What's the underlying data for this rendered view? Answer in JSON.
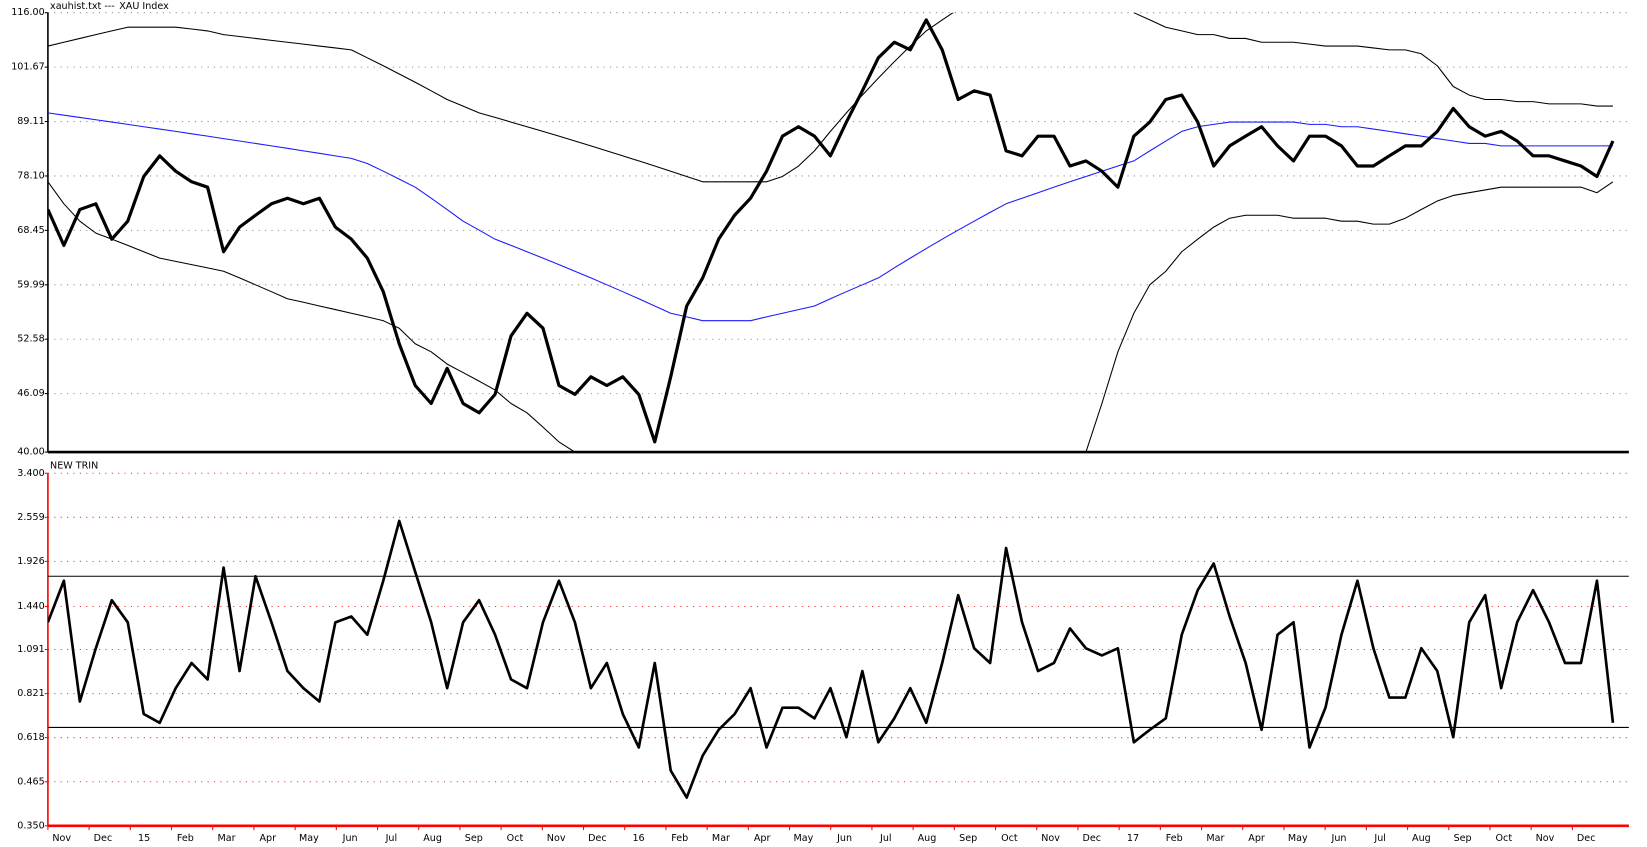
{
  "chart_data": [
    {
      "type": "line",
      "title": "xauhist.txt ---",
      "subtitle": "XAU Index",
      "log": true,
      "grid": true,
      "grid_color": "#888",
      "axis_color": "#000",
      "ylim": [
        40,
        116
      ],
      "yticks": [
        {
          "value": 40,
          "label": "40.00"
        },
        46.09,
        52.58,
        59.99,
        68.45,
        {
          "value": 78.1,
          "label": "78.10"
        },
        89.11,
        101.67,
        {
          "value": 116,
          "label": "116.00"
        }
      ],
      "series": [
        {
          "color": "#000000",
          "width": 1,
          "values": [
            107,
            108,
            109,
            110,
            111,
            112,
            112,
            112,
            112,
            111.5,
            111,
            110,
            109.5,
            109,
            108.5,
            108,
            107.5,
            107,
            106.5,
            106,
            104,
            102,
            100,
            98,
            96,
            94,
            92.5,
            91,
            90,
            89,
            88,
            87,
            86,
            85,
            84,
            83,
            82,
            81,
            80,
            79,
            78,
            77,
            77,
            77,
            77,
            77,
            78,
            80,
            83,
            87,
            91,
            95,
            99,
            103,
            107,
            111,
            114,
            117,
            null,
            null,
            null,
            null,
            null,
            null,
            null,
            null,
            null,
            null,
            116,
            114,
            112,
            111,
            110,
            110,
            109,
            109,
            108,
            108,
            108,
            107.5,
            107,
            107,
            107,
            106.5,
            106,
            106,
            105,
            102,
            97,
            95,
            94,
            94,
            93.5,
            93.5,
            93,
            93,
            93,
            92.5,
            92.5
          ]
        },
        {
          "color": "#000000",
          "width": 1,
          "values": [
            77,
            73,
            70,
            68,
            67,
            66,
            65,
            64,
            63.5,
            63,
            62.5,
            62,
            61,
            60,
            59,
            58,
            57.5,
            57,
            56.5,
            56,
            55.5,
            55,
            54,
            52,
            51,
            49.5,
            48.5,
            47.5,
            46.5,
            45,
            44,
            42.5,
            41,
            40,
            null,
            null,
            null,
            null,
            null,
            null,
            null,
            null,
            null,
            null,
            null,
            null,
            null,
            null,
            null,
            null,
            null,
            null,
            null,
            null,
            null,
            null,
            null,
            null,
            null,
            null,
            null,
            null,
            null,
            null,
            null,
            40,
            45,
            51,
            56,
            60,
            62,
            65,
            67,
            69,
            70.5,
            71,
            71,
            71,
            70.5,
            70.5,
            70.5,
            70,
            70,
            69.5,
            69.5,
            70.5,
            72,
            73.5,
            74.5,
            75,
            75.5,
            76,
            76,
            76,
            76,
            76,
            76,
            75,
            77
          ]
        },
        {
          "color": "#1a1aff",
          "width": 1,
          "values": [
            91,
            90.5,
            90,
            89.5,
            89,
            88.5,
            88,
            87.5,
            87,
            86.5,
            86,
            85.5,
            85,
            84.5,
            84,
            83.5,
            83,
            82.5,
            82,
            81.5,
            80.5,
            79,
            77.5,
            76,
            74,
            72,
            70,
            68.5,
            67,
            66,
            65,
            64,
            63,
            62,
            61,
            60,
            59,
            58,
            57,
            56,
            55.5,
            55,
            55,
            55,
            55,
            55.5,
            56,
            56.5,
            57,
            58,
            59,
            60,
            61,
            62.5,
            64,
            65.5,
            67,
            68.5,
            70,
            71.5,
            73,
            74,
            75,
            76,
            77,
            78,
            79,
            80,
            81,
            83,
            85,
            87,
            88,
            88.5,
            89,
            89,
            89,
            89,
            89,
            88.5,
            88.5,
            88,
            88,
            87.5,
            87,
            86.5,
            86,
            85.5,
            85,
            84.5,
            84.5,
            84,
            84,
            84,
            84,
            84,
            84,
            84,
            84
          ]
        },
        {
          "color": "#000000",
          "width": 3,
          "values": [
            72,
            66,
            72,
            73,
            67,
            70,
            78,
            82,
            79,
            77,
            76,
            65,
            69,
            71,
            73,
            74,
            73,
            74,
            69,
            67,
            64,
            59,
            52,
            47,
            45,
            49,
            45,
            44,
            46,
            53,
            56,
            54,
            47,
            46,
            48,
            47,
            48,
            46,
            41,
            48,
            57,
            61,
            67,
            71,
            74,
            79,
            86,
            88,
            86,
            82,
            89,
            96,
            104,
            108,
            106,
            114,
            106,
            94,
            96,
            95,
            83,
            82,
            86,
            86,
            80,
            81,
            79,
            76,
            86,
            89,
            94,
            95,
            89,
            80,
            84,
            86,
            88,
            84,
            81,
            86,
            86,
            84,
            80,
            80,
            82,
            84,
            84,
            87,
            92,
            88,
            86,
            87,
            85,
            82,
            82,
            81,
            80,
            78,
            85
          ]
        }
      ]
    },
    {
      "type": "line",
      "title": "NEW TRIN",
      "log": true,
      "grid": true,
      "grid_color": "#e03030",
      "axis_color": "#ff0000",
      "ylim": [
        0.35,
        3.4
      ],
      "yticks": [
        {
          "value": 0.35,
          "label": "0.350"
        },
        0.465,
        0.618,
        0.821,
        1.091,
        {
          "value": 1.44,
          "label": "1.440"
        },
        1.926,
        2.559,
        {
          "value": 3.4,
          "label": "3.400"
        }
      ],
      "hlines": [
        1.75,
        0.66
      ],
      "xtick_labels": [
        "Nov",
        "Dec",
        "15",
        "Feb",
        "Mar",
        "Apr",
        "May",
        "Jun",
        "Jul",
        "Aug",
        "Sep",
        "Oct",
        "Nov",
        "Dec",
        "16",
        "Feb",
        "Mar",
        "Apr",
        "May",
        "Jun",
        "Jul",
        "Aug",
        "Sep",
        "Oct",
        "Nov",
        "Dec",
        "17",
        "Feb",
        "Mar",
        "Apr",
        "May",
        "Jun",
        "Jul",
        "Aug",
        "Sep",
        "Oct",
        "Nov",
        "Dec"
      ],
      "series": [
        {
          "color": "#000000",
          "width": 2.5,
          "values": [
            1.3,
            1.7,
            0.78,
            1.1,
            1.5,
            1.3,
            0.72,
            0.68,
            0.85,
            1.0,
            0.9,
            1.85,
            0.95,
            1.75,
            1.3,
            0.95,
            0.85,
            0.78,
            1.3,
            1.35,
            1.2,
            1.7,
            2.5,
            1.8,
            1.3,
            0.85,
            1.3,
            1.5,
            1.2,
            0.9,
            0.85,
            1.3,
            1.7,
            1.3,
            0.85,
            1.0,
            0.72,
            0.58,
            1.0,
            0.5,
            0.42,
            0.55,
            0.65,
            0.72,
            0.85,
            0.58,
            0.75,
            0.75,
            0.7,
            0.85,
            0.62,
            0.95,
            0.6,
            0.7,
            0.85,
            0.68,
            1.0,
            1.55,
            1.1,
            1.0,
            2.1,
            1.3,
            0.95,
            1.0,
            1.25,
            1.1,
            1.05,
            1.1,
            0.6,
            0.65,
            0.7,
            1.2,
            1.6,
            1.9,
            1.35,
            1.0,
            0.65,
            1.2,
            1.3,
            0.58,
            0.75,
            1.2,
            1.7,
            1.1,
            0.8,
            0.8,
            1.1,
            0.95,
            0.62,
            1.3,
            1.55,
            0.85,
            1.3,
            1.6,
            1.3,
            1.0,
            1.0,
            1.7,
            0.68
          ]
        }
      ]
    }
  ]
}
